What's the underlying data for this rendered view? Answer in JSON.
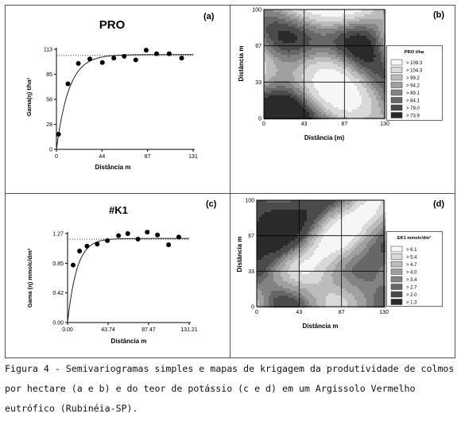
{
  "chart_data": [
    {
      "type": "scatter",
      "panel_label": "(a)",
      "title": "PRO",
      "xlabel": "Distância  m",
      "ylabel": "Gama(η) t/ha²",
      "xlim": [
        0,
        131
      ],
      "ylim": [
        0,
        113
      ],
      "x_ticks": [
        "0",
        "44",
        "87",
        "131"
      ],
      "y_ticks": [
        "0",
        "28",
        "56",
        "85",
        "113"
      ],
      "sill_label": "113",
      "sill": 106,
      "points": [
        [
          2,
          17
        ],
        [
          11,
          74
        ],
        [
          21,
          97
        ],
        [
          32,
          102
        ],
        [
          44,
          98
        ],
        [
          55,
          103
        ],
        [
          65,
          105
        ],
        [
          76,
          101
        ],
        [
          86,
          112
        ],
        [
          96,
          108
        ],
        [
          108,
          108
        ],
        [
          120,
          103
        ]
      ],
      "model_sill": 107,
      "model_range": 12
    },
    {
      "type": "heatmap",
      "panel_label": "(b)",
      "xlabel": "Distância (m)",
      "ylabel": "Distância  m",
      "x_ticks": [
        "0",
        "43",
        "87",
        "130"
      ],
      "y_ticks": [
        "0",
        "33",
        "67",
        "100"
      ],
      "legend_title": "PRO  t/ha",
      "legend": [
        "> 109.3",
        "> 104.3",
        "> 99.2",
        "> 94.2",
        "> 89.1",
        "> 84.1",
        "> 79.0",
        "> 73.9"
      ],
      "class_colors": [
        "#f6f6f6",
        "#d9d9d9",
        "#bcbcbc",
        "#a0a0a0",
        "#838383",
        "#676767",
        "#4b4b4b",
        "#2a2a2a"
      ]
    },
    {
      "type": "scatter",
      "panel_label": "(c)",
      "title": "#K1",
      "xlabel": "Distância  m",
      "ylabel": "Gama (η) mmolc/dm³",
      "xlim": [
        0,
        131.21
      ],
      "ylim": [
        0,
        1.27
      ],
      "x_ticks": [
        "0.00",
        "43.74",
        "87.47",
        "131.21"
      ],
      "y_ticks": [
        "0.00",
        "0.42",
        "0.85",
        "1.27"
      ],
      "sill_label": "1.27",
      "sill": 1.19,
      "points": [
        [
          6,
          0.82
        ],
        [
          13,
          1.02
        ],
        [
          21,
          1.09
        ],
        [
          32,
          1.12
        ],
        [
          43,
          1.17
        ],
        [
          55,
          1.24
        ],
        [
          65,
          1.27
        ],
        [
          76,
          1.19
        ],
        [
          86,
          1.29
        ],
        [
          97,
          1.25
        ],
        [
          109,
          1.11
        ],
        [
          120,
          1.22
        ]
      ],
      "model_sill": 1.2,
      "model_range": 10
    },
    {
      "type": "heatmap",
      "panel_label": "(d)",
      "xlabel": "Distância  m",
      "ylabel": "Distância  m",
      "x_ticks": [
        "0",
        "43",
        "87",
        "130"
      ],
      "y_ticks": [
        "0",
        "33",
        "67",
        "100"
      ],
      "legend_title": "EK1  mmolc/dm³",
      "legend": [
        "> 6.1",
        "> 5.4",
        "> 4.7",
        "> 4.0",
        "> 3.4",
        "> 2.7",
        "> 2.0",
        "> 1.3"
      ],
      "class_colors": [
        "#f6f6f6",
        "#d9d9d9",
        "#bcbcbc",
        "#a0a0a0",
        "#838383",
        "#676767",
        "#4b4b4b",
        "#2a2a2a"
      ]
    }
  ],
  "caption": "Figura 4 - Semivariogramas simples e mapas de krigagem da produtividade de colmos por hectare (a e b) e do teor de potássio (c e d) em um Argissolo Vermelho eutrófico (Rubinéia-SP)."
}
